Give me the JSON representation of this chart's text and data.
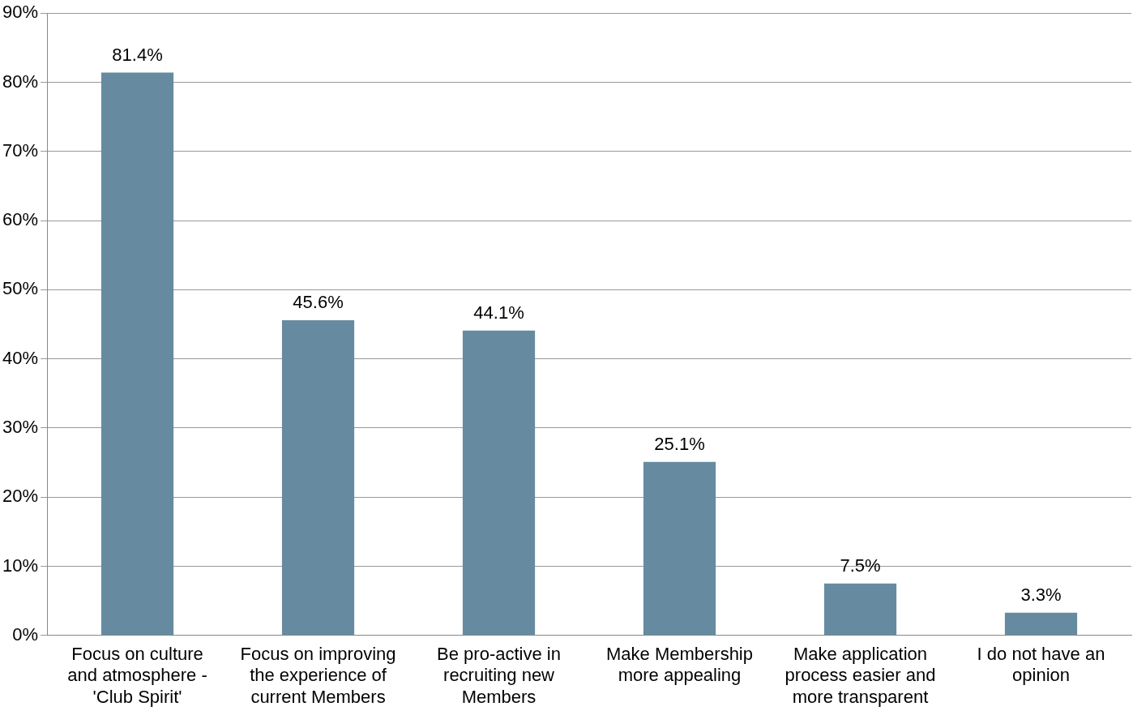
{
  "chart_data": {
    "type": "bar",
    "categories": [
      "Focus on culture and atmosphere - 'Club Spirit'",
      "Focus on improving the experience of current Members",
      "Be pro-active in recruiting new Members",
      "Make Membership more appealing",
      "Make application process easier and more transparent",
      "I do not have an opinion"
    ],
    "values": [
      81.4,
      45.6,
      44.1,
      25.1,
      7.5,
      3.3
    ],
    "value_labels": [
      "81.4%",
      "45.6%",
      "44.1%",
      "25.1%",
      "7.5%",
      "3.3%"
    ],
    "color": "#668ba0",
    "ylim": [
      0,
      90
    ],
    "yticks": [
      {
        "value": 0,
        "label": "0%"
      },
      {
        "value": 10,
        "label": "10%"
      },
      {
        "value": 20,
        "label": "20%"
      },
      {
        "value": 30,
        "label": "30%"
      },
      {
        "value": 40,
        "label": "40%"
      },
      {
        "value": 50,
        "label": "50%"
      },
      {
        "value": 60,
        "label": "60%"
      },
      {
        "value": 70,
        "label": "70%"
      },
      {
        "value": 80,
        "label": "80%"
      },
      {
        "value": 90,
        "label": "90%"
      }
    ],
    "grid": "y",
    "legend": false
  }
}
